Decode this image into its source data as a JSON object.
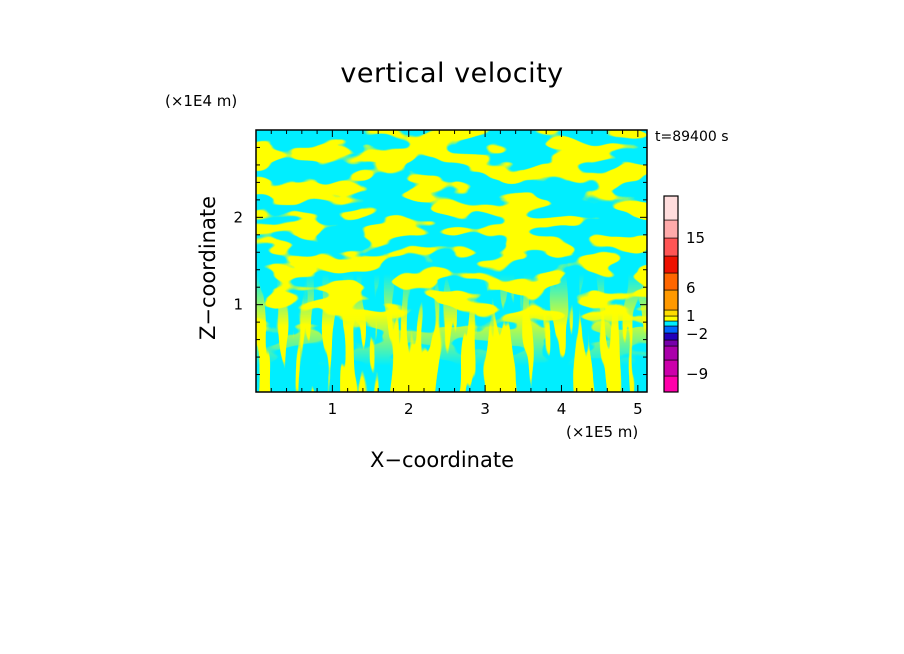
{
  "chart_data": {
    "type": "heatmap",
    "title": "vertical velocity",
    "xlabel": "X−coordinate",
    "ylabel": "Z−coordinate",
    "x_unit": "(×1E5 m)",
    "z_unit": "(×1E4 m)",
    "time_label": "t=89400 s",
    "xlim": [
      0,
      5.12
    ],
    "ylim": [
      0,
      3.0
    ],
    "x_ticks": [
      "1",
      "2",
      "3",
      "4",
      "5"
    ],
    "y_ticks": [
      "1",
      "2"
    ],
    "dominant_colors": {
      "positive": "#ffff00",
      "negative": "#00eeff"
    },
    "colorbar": {
      "colors": [
        "#ff00aa",
        "#cc00aa",
        "#aa00aa",
        "#7700aa",
        "#2200bb",
        "#0066ff",
        "#00eeff",
        "#ffff00",
        "#ffdd00",
        "#ff9900",
        "#ff6600",
        "#ee1100",
        "#ff5555",
        "#ffaaaa",
        "#ffdddd",
        "#fff6f4"
      ],
      "labels": [
        "15",
        "6",
        "1",
        "−2",
        "−9"
      ]
    }
  }
}
